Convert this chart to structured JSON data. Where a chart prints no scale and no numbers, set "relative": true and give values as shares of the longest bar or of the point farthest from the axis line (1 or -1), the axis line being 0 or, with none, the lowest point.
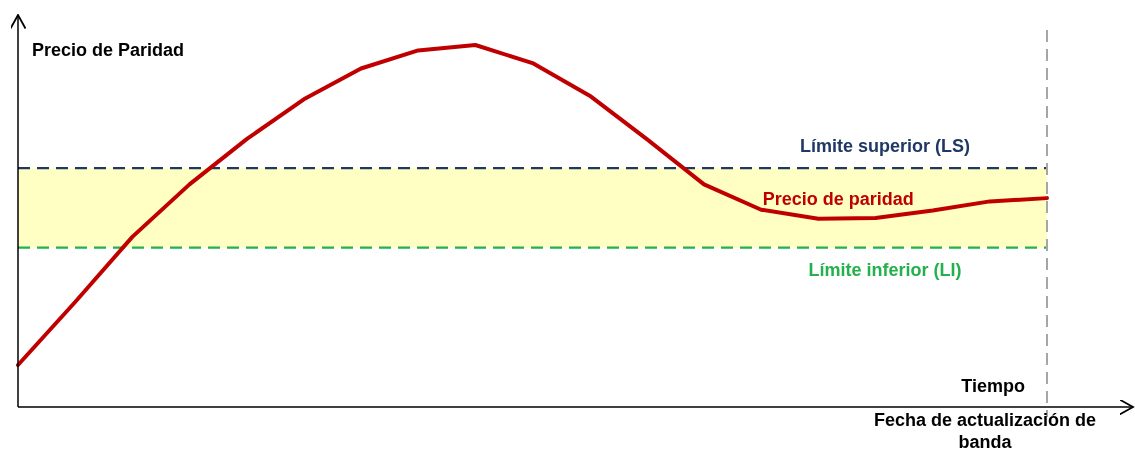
{
  "chart_data": {
    "type": "line",
    "relative": true,
    "ylabel": "Precio de Paridad",
    "xlabel": "Tiempo",
    "legend": false,
    "categories": [
      null,
      null,
      null,
      null,
      null,
      null,
      null,
      null,
      null,
      null,
      null,
      null,
      null,
      null,
      null,
      null,
      null,
      null,
      null
    ],
    "series": [
      {
        "name": "Precio de paridad",
        "color": "#c00000",
        "values": [
          0.116,
          0.29,
          0.47,
          0.615,
          0.74,
          0.85,
          0.935,
          0.985,
          1,
          0.95,
          0.86,
          0.74,
          0.615,
          0.545,
          0.52,
          0.522,
          0.543,
          0.568,
          0.577
        ]
      }
    ],
    "bands": [
      {
        "axis": "y",
        "from": 0.44,
        "to": 0.66,
        "color": "#ffffc4"
      }
    ],
    "ref_lines": [
      {
        "axis": "y",
        "value": 0.66,
        "label": "Límite superior (LS)",
        "color": "#1f3864",
        "line_style": "dashed"
      },
      {
        "axis": "y",
        "value": 0.44,
        "label": "Límite inferior (LI)",
        "color": "#22b14c",
        "line_style": "dashed"
      }
    ],
    "annotations": [
      "Fecha de actualización de banda"
    ]
  }
}
